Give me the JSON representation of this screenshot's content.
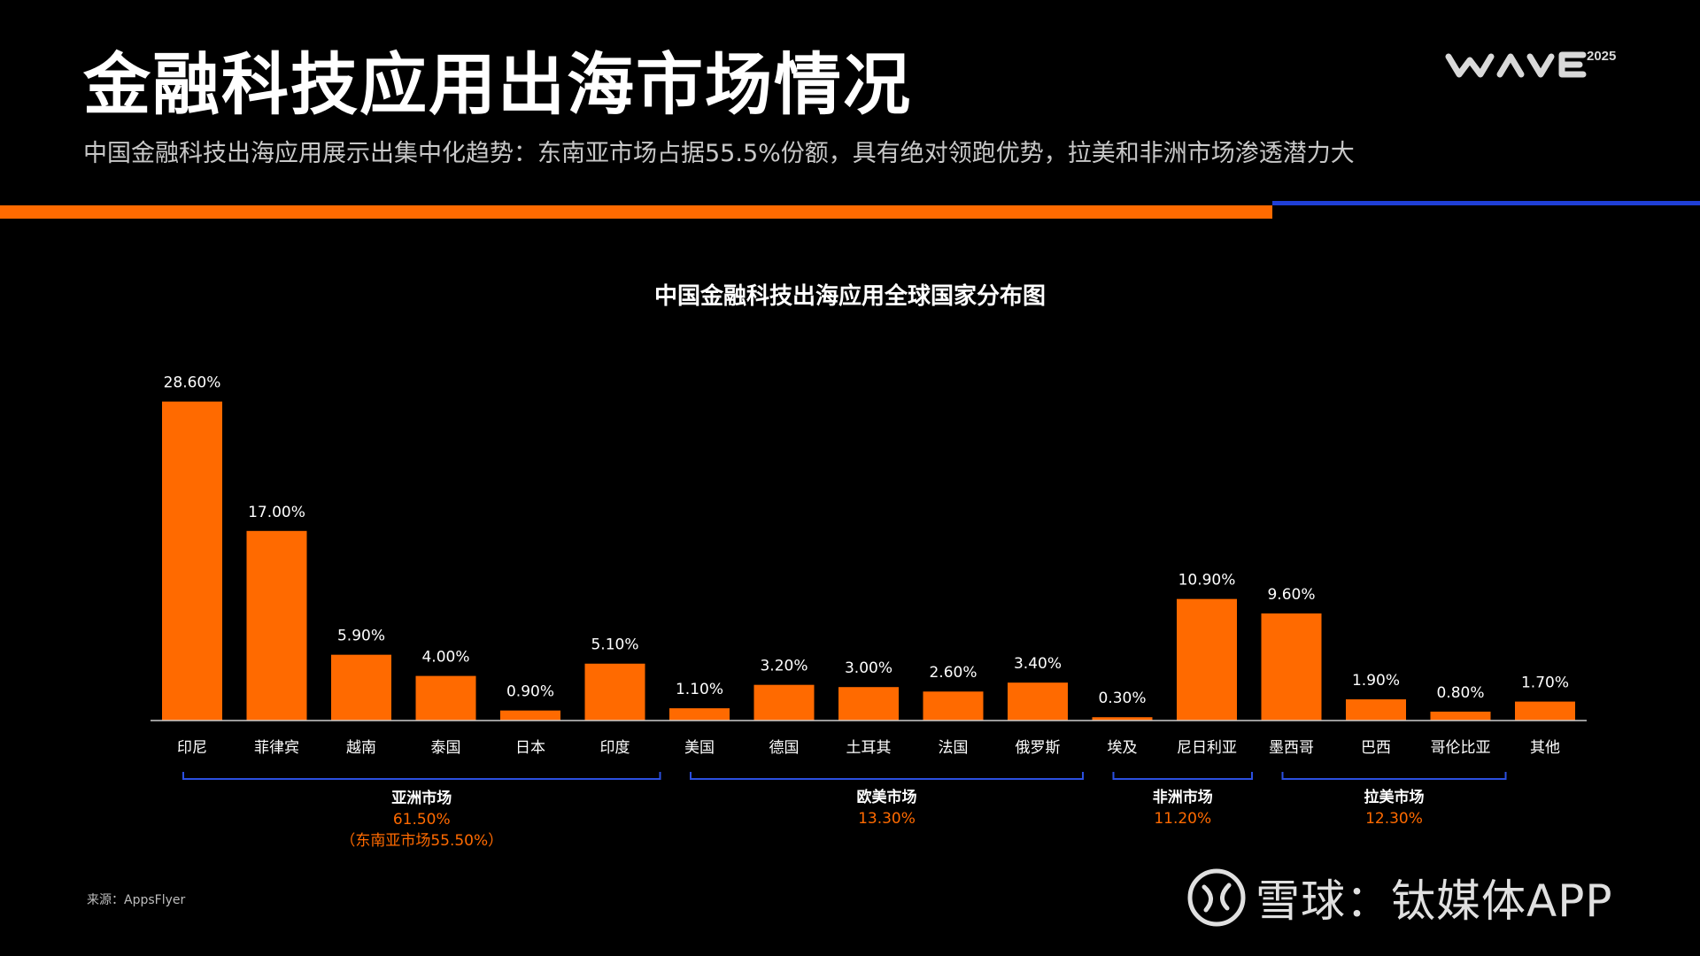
{
  "header": {
    "title": "金融科技应用出海市场情况",
    "subtitle": "中国金融科技出海应用展示出集中化趋势：东南亚市场占据55.5%份额，具有绝对领跑优势，拉美和非洲市场渗透潜力大",
    "logo_text": "WAVE",
    "logo_year": "2025"
  },
  "colors": {
    "background": "#000000",
    "bar": "#ff6a00",
    "accent_orange": "#ff6a00",
    "accent_blue": "#1f3fd6",
    "bracket": "#2b4fe0",
    "label_text": "#ffffff"
  },
  "chart_data": {
    "type": "bar",
    "title": "中国金融科技出海应用全球国家分布图",
    "categories": [
      "印尼",
      "菲律宾",
      "越南",
      "泰国",
      "日本",
      "印度",
      "美国",
      "德国",
      "土耳其",
      "法国",
      "俄罗斯",
      "埃及",
      "尼日利亚",
      "墨西哥",
      "巴西",
      "哥伦比亚",
      "其他"
    ],
    "values": [
      28.6,
      17.0,
      5.9,
      4.0,
      0.9,
      5.1,
      1.1,
      3.2,
      3.0,
      2.6,
      3.4,
      0.3,
      10.9,
      9.6,
      1.9,
      0.8,
      1.7
    ],
    "value_labels": [
      "28.60%",
      "17.00%",
      "5.90%",
      "4.00%",
      "0.90%",
      "5.10%",
      "1.10%",
      "3.20%",
      "3.00%",
      "2.60%",
      "3.40%",
      "0.30%",
      "10.90%",
      "9.60%",
      "1.90%",
      "0.80%",
      "1.70%"
    ],
    "unit": "%",
    "groups": [
      {
        "name": "亚洲市场",
        "share": "61.50%",
        "note": "（东南亚市场55.50%）",
        "first_index": 0,
        "last_index": 5
      },
      {
        "name": "欧美市场",
        "share": "13.30%",
        "note": "",
        "first_index": 6,
        "last_index": 10
      },
      {
        "name": "非洲市场",
        "share": "11.20%",
        "note": "",
        "first_index": 11,
        "last_index": 12
      },
      {
        "name": "拉美市场",
        "share": "12.30%",
        "note": "",
        "first_index": 13,
        "last_index": 15
      }
    ],
    "grid": false,
    "legend": "none"
  },
  "footer": {
    "source": "来源：AppsFlyer",
    "watermark": "雪球：钛媒体APP"
  }
}
